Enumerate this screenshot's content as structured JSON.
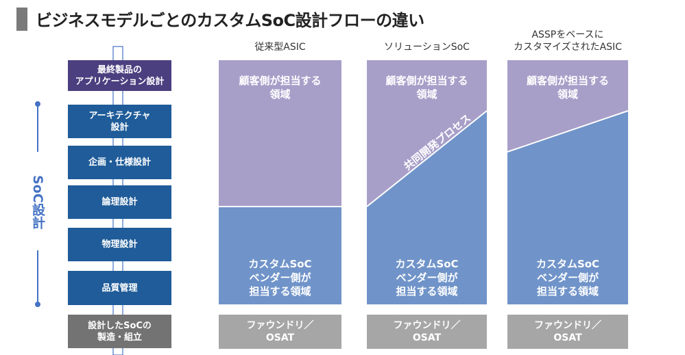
{
  "title": "ビジネスモデルごとのカスタムSoC設計フローの違い",
  "flow": {
    "steps": [
      "最終製品の\nアプリケーション設計",
      "アーキテクチャ\n設計",
      "企画・仕様設計",
      "論理設計",
      "物理設計",
      "品質管理",
      "設計したSoCの\n製造・組立"
    ],
    "bracket_label": "SoC設計"
  },
  "columns": [
    {
      "header": "従来型ASIC",
      "customer": "顧客側が担当する\n領域",
      "vendor": "カスタムSoC\nベンダー側が\n担当する領域",
      "foundry": "ファウンドリ／\nOSAT"
    },
    {
      "header": "ソリューションSoC",
      "customer": "顧客側が担当する\n領域",
      "vendor": "カスタムSoC\nベンダー側が\n担当する領域",
      "joint": "共同開発プロセス",
      "foundry": "ファウンドリ／\nOSAT"
    },
    {
      "header": "ASSPをベースに\nカスタマイズされたASIC",
      "customer": "顧客側が担当する\n領域",
      "vendor": "カスタムSoC\nベンダー側が\n担当する領域",
      "foundry": "ファウンドリ／\nOSAT"
    }
  ],
  "colors": {
    "customer": "#a89fc9",
    "vendor": "#7094c9",
    "step": "#1f5c99",
    "top_step": "#4b3f7f",
    "manufacture": "#737373",
    "foundry": "#a6a6a6",
    "accent": "#4472c4"
  }
}
